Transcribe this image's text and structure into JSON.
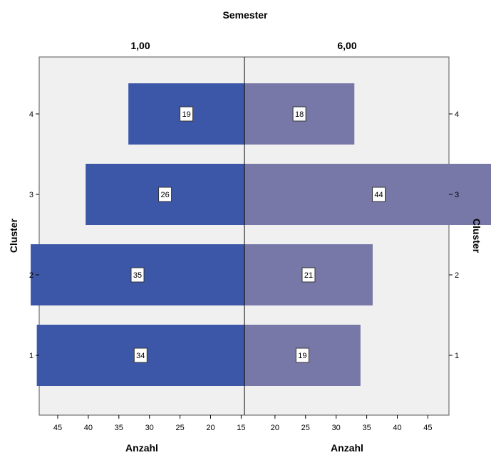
{
  "chart_data": {
    "type": "bar",
    "orientation": "horizontal-butterfly",
    "title": "Semester",
    "panels": [
      {
        "name": "1,00",
        "color": "#3c57a8"
      },
      {
        "name": "6,00",
        "color": "#7878a8"
      }
    ],
    "categories": [
      "1",
      "2",
      "3",
      "4"
    ],
    "series": [
      {
        "name": "1,00",
        "values": [
          34,
          35,
          26,
          19
        ]
      },
      {
        "name": "6,00",
        "values": [
          19,
          21,
          44,
          18
        ]
      }
    ],
    "ylabel_left": "Cluster",
    "ylabel_right": "Cluster",
    "xlabel_left": "Anzahl",
    "xlabel_right": "Anzahl",
    "x_ticks_left": [
      "45",
      "40",
      "35",
      "30",
      "25",
      "20",
      "15"
    ],
    "x_ticks_right": [
      "20",
      "25",
      "30",
      "35",
      "40",
      "45"
    ],
    "background": "#f0f0f0",
    "grid": false
  }
}
